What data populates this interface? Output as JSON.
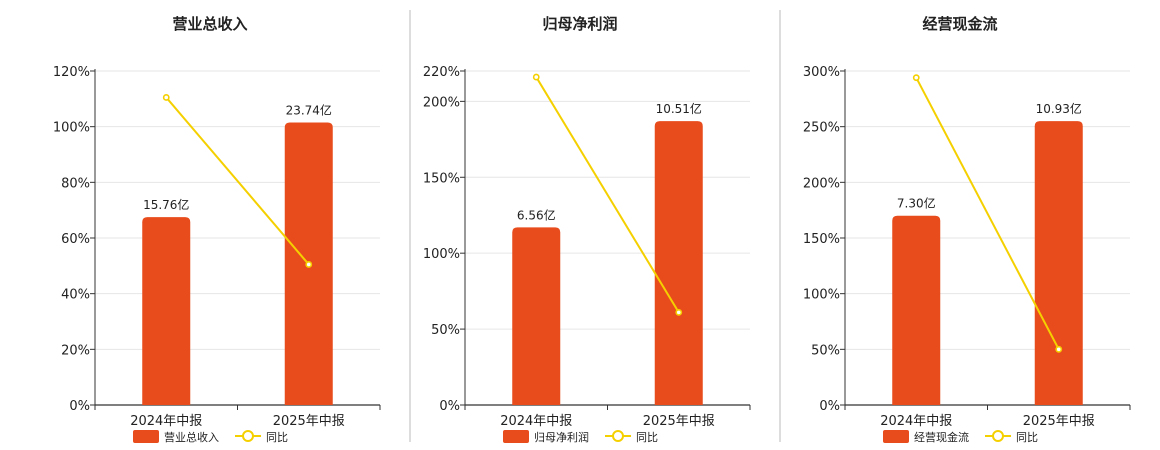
{
  "colors": {
    "bar": "#e84c1c",
    "line": "#f5d000",
    "axis": "#333333",
    "grid": "#e6e6e6",
    "divider": "#bbbbbb",
    "text": "#222222"
  },
  "chart_data": [
    {
      "type": "bar",
      "title": "营业总收入",
      "categories": [
        "2024年中报",
        "2025年中报"
      ],
      "series": [
        {
          "name": "营业总收入",
          "type": "bar",
          "values": [
            15.76,
            23.74
          ],
          "labels": [
            "15.76亿",
            "23.74亿"
          ],
          "bar_axis_percent": [
            67.5,
            101.5
          ]
        },
        {
          "name": "同比",
          "type": "line",
          "values": [
            110.5,
            50.5
          ]
        }
      ],
      "ylim": [
        0,
        120
      ],
      "yticks": [
        0,
        20,
        40,
        60,
        80,
        100,
        120
      ],
      "ytick_labels": [
        "0%",
        "20%",
        "40%",
        "60%",
        "80%",
        "100%",
        "120%"
      ],
      "grid": true,
      "legend": "bottom"
    },
    {
      "type": "bar",
      "title": "归母净利润",
      "categories": [
        "2024年中报",
        "2025年中报"
      ],
      "series": [
        {
          "name": "归母净利润",
          "type": "bar",
          "values": [
            6.56,
            10.51
          ],
          "labels": [
            "6.56亿",
            "10.51亿"
          ],
          "bar_axis_percent": [
            117,
            187
          ]
        },
        {
          "name": "同比",
          "type": "line",
          "values": [
            216,
            61
          ]
        }
      ],
      "ylim": [
        0,
        220
      ],
      "yticks": [
        0,
        50,
        100,
        150,
        200,
        220
      ],
      "ytick_labels": [
        "0%",
        "50%",
        "100%",
        "150%",
        "200%",
        "220%"
      ],
      "grid": true,
      "legend": "bottom"
    },
    {
      "type": "bar",
      "title": "经营现金流",
      "categories": [
        "2024年中报",
        "2025年中报"
      ],
      "series": [
        {
          "name": "经营现金流",
          "type": "bar",
          "values": [
            7.3,
            10.93
          ],
          "labels": [
            "7.30亿",
            "10.93亿"
          ],
          "bar_axis_percent": [
            170,
            255
          ]
        },
        {
          "name": "同比",
          "type": "line",
          "values": [
            294,
            50
          ]
        }
      ],
      "ylim": [
        0,
        300
      ],
      "yticks": [
        0,
        50,
        100,
        150,
        200,
        250,
        300
      ],
      "ytick_labels": [
        "0%",
        "50%",
        "100%",
        "150%",
        "200%",
        "250%",
        "300%"
      ],
      "grid": true,
      "legend": "bottom"
    }
  ]
}
